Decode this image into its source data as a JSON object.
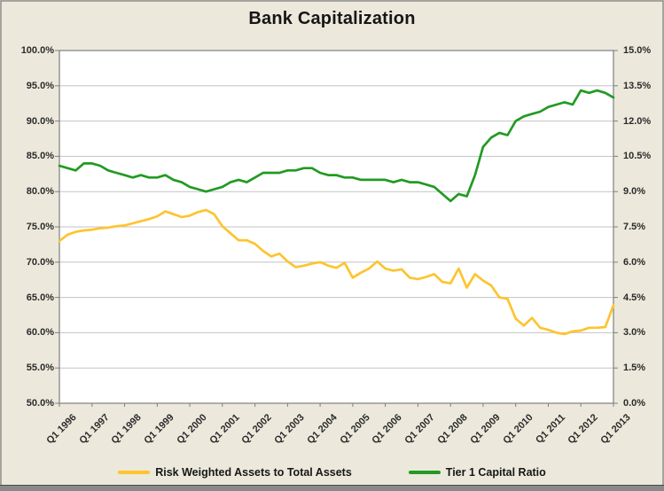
{
  "window": {
    "background_color": "#ECE9DC",
    "plot_background_color": "#FFFFFF",
    "gridline_color": "#C3C3C3",
    "axis_line_color": "#7F7F7F",
    "bottom_bar_color": "#8A8A8A"
  },
  "chart_data": {
    "type": "line",
    "title": "Bank Capitalization",
    "grid": "horizontal",
    "legend_position": "bottom",
    "x_frequency": "quarterly",
    "x_tick_labels": [
      "Q1 1996",
      "Q1 1997",
      "Q1 1998",
      "Q1 1999",
      "Q1 2000",
      "Q1 2001",
      "Q1 2002",
      "Q1 2003",
      "Q1 2004",
      "Q1 2005",
      "Q1 2006",
      "Q1 2007",
      "Q1 2008",
      "Q1 2009",
      "Q1 2010",
      "Q1 2011",
      "Q1 2012",
      "Q1 2013"
    ],
    "left_axis": {
      "min": 50,
      "max": 100,
      "step": 5,
      "tick_labels": [
        "100.0%",
        "95.0%",
        "90.0%",
        "85.0%",
        "80.0%",
        "75.0%",
        "70.0%",
        "65.0%",
        "60.0%",
        "55.0%",
        "50.0%"
      ]
    },
    "right_axis": {
      "min": 0,
      "max": 15,
      "step": 1.5,
      "tick_labels": [
        "15.0%",
        "13.5%",
        "12.0%",
        "10.5%",
        "9.0%",
        "7.5%",
        "6.0%",
        "4.5%",
        "3.0%",
        "1.5%",
        "0.0%"
      ]
    },
    "series": [
      {
        "name": "Risk Weighted Assets to Total Assets",
        "axis": "left",
        "color": "#FDC42F",
        "values": [
          73.0,
          73.9,
          74.3,
          74.5,
          74.6,
          74.8,
          74.9,
          75.1,
          75.2,
          75.5,
          75.8,
          76.1,
          76.5,
          77.2,
          76.8,
          76.4,
          76.6,
          77.1,
          77.4,
          76.8,
          75.1,
          74.1,
          73.1,
          73.1,
          72.6,
          71.6,
          70.8,
          71.2,
          70.1,
          69.3,
          69.5,
          69.8,
          70.0,
          69.5,
          69.2,
          69.9,
          67.8,
          68.5,
          69.1,
          70.1,
          69.1,
          68.8,
          69.0,
          67.8,
          67.6,
          67.9,
          68.3,
          67.2,
          67.0,
          69.1,
          66.4,
          68.3,
          67.4,
          66.7,
          65.0,
          64.8,
          62.0,
          61.0,
          62.1,
          60.7,
          60.4,
          60.0,
          59.8,
          60.2,
          60.3,
          60.7,
          60.7,
          60.8,
          63.9
        ]
      },
      {
        "name": "Tier 1 Capital Ratio",
        "axis": "right",
        "color": "#229A23",
        "values": [
          10.1,
          10.0,
          9.9,
          10.2,
          10.2,
          10.1,
          9.9,
          9.8,
          9.7,
          9.6,
          9.7,
          9.6,
          9.6,
          9.7,
          9.5,
          9.4,
          9.2,
          9.1,
          9.0,
          9.1,
          9.2,
          9.4,
          9.5,
          9.4,
          9.6,
          9.8,
          9.8,
          9.8,
          9.9,
          9.9,
          10.0,
          10.0,
          9.8,
          9.7,
          9.7,
          9.6,
          9.6,
          9.5,
          9.5,
          9.5,
          9.5,
          9.4,
          9.5,
          9.4,
          9.4,
          9.3,
          9.2,
          8.9,
          8.6,
          8.9,
          8.8,
          9.7,
          10.9,
          11.3,
          11.5,
          11.4,
          12.0,
          12.2,
          12.3,
          12.4,
          12.6,
          12.7,
          12.8,
          12.7,
          13.3,
          13.2,
          13.3,
          13.2,
          13.0
        ]
      }
    ]
  }
}
